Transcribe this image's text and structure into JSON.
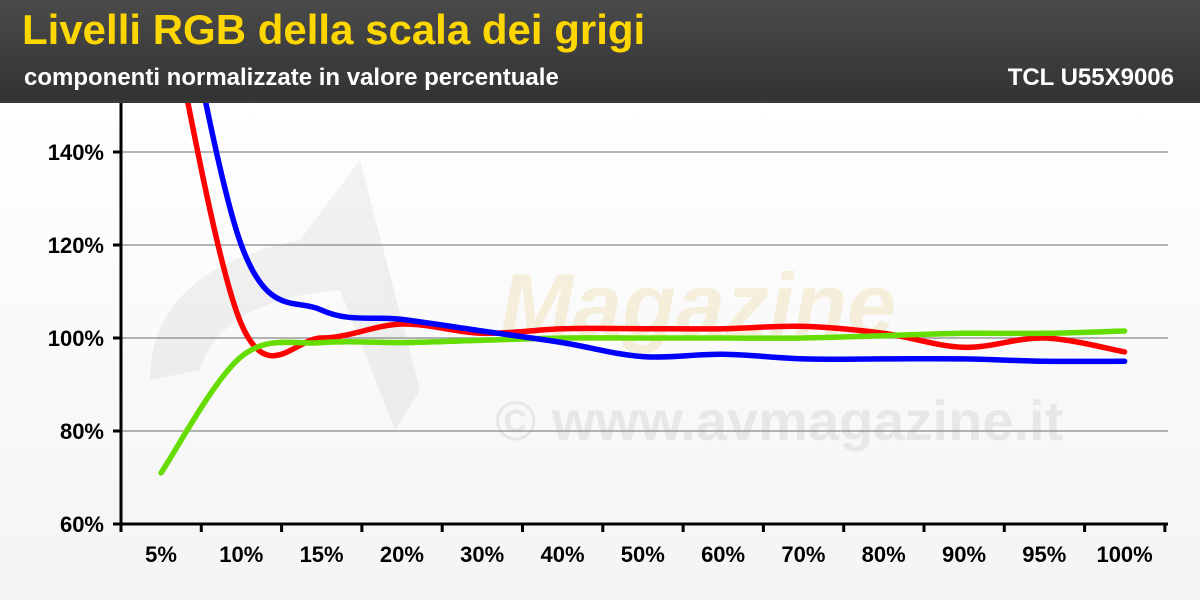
{
  "header": {
    "title": "Livelli RGB della scala dei grigi",
    "subtitle": "componenti normalizzate in valore percentuale",
    "model": "TCL U55X9006"
  },
  "watermark": {
    "brand": "Magazine",
    "site": "© www.avmagazine.it"
  },
  "chart_data": {
    "type": "line",
    "categories": [
      "5%",
      "10%",
      "15%",
      "20%",
      "30%",
      "40%",
      "50%",
      "60%",
      "70%",
      "80%",
      "90%",
      "95%",
      "100%"
    ],
    "y_ticks": [
      "60%",
      "80%",
      "100%",
      "120%",
      "140%"
    ],
    "ylim": [
      60,
      150
    ],
    "grid": true,
    "series": [
      {
        "color": "#ff0000",
        "values": [
          180,
          103,
          100,
          103,
          101,
          102,
          102,
          102,
          102.5,
          101,
          98,
          100,
          97
        ]
      },
      {
        "color": "#66dd00",
        "values": [
          71,
          96,
          99,
          99,
          99.5,
          100,
          100,
          100,
          100,
          100.5,
          101,
          101,
          101.5
        ]
      },
      {
        "color": "#0000ff",
        "values": [
          200,
          120,
          106,
          104,
          101.5,
          99,
          96,
          96.5,
          95.5,
          95.5,
          95.5,
          95,
          95
        ]
      }
    ]
  }
}
